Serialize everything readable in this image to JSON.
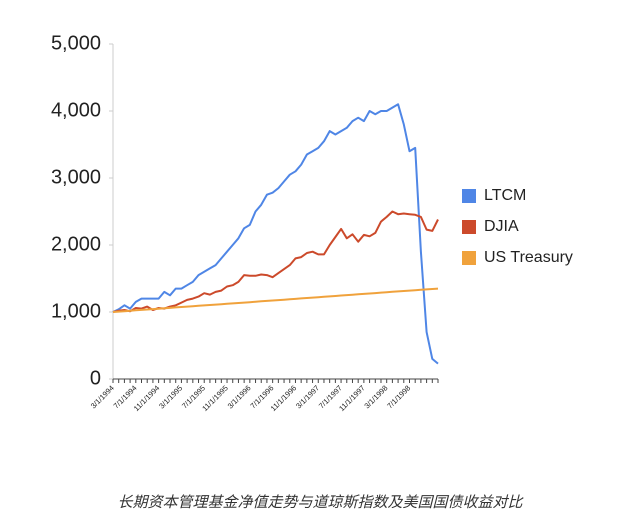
{
  "chart_data": {
    "type": "line",
    "caption": "长期资本管理基金净值走势与道琼斯指数及美国国债收益对比",
    "categories": [
      "3/1/1994",
      null,
      null,
      null,
      "7/1/1994",
      null,
      null,
      null,
      "11/1/1994",
      null,
      null,
      null,
      "3/1/1995",
      null,
      null,
      null,
      "7/1/1995",
      null,
      null,
      null,
      "11/1/1995",
      null,
      null,
      null,
      "3/1/1996",
      null,
      null,
      null,
      "7/1/1996",
      null,
      null,
      null,
      "11/1/1996",
      null,
      null,
      null,
      "3/1/1997",
      null,
      null,
      null,
      "7/1/1997",
      null,
      null,
      null,
      "11/1/1997",
      null,
      null,
      null,
      "3/1/1998",
      null,
      null,
      null,
      "7/1/1998",
      null,
      null,
      null,
      null,
      null
    ],
    "series": [
      {
        "name": "LTCM",
        "color": "#4f86e6",
        "values": [
          1000,
          1040,
          1100,
          1050,
          1150,
          1200,
          1200,
          1200,
          1200,
          1300,
          1250,
          1350,
          1350,
          1400,
          1450,
          1550,
          1600,
          1650,
          1700,
          1800,
          1900,
          2000,
          2100,
          2250,
          2300,
          2500,
          2600,
          2750,
          2780,
          2850,
          2950,
          3050,
          3100,
          3200,
          3350,
          3400,
          3450,
          3550,
          3700,
          3650,
          3700,
          3750,
          3850,
          3900,
          3850,
          4000,
          3950,
          4000,
          4000,
          4050,
          4100,
          3800,
          3400,
          3450,
          1900,
          700,
          300,
          230
        ]
      },
      {
        "name": "DJIA",
        "color": "#cc4a2b",
        "values": [
          1000,
          1020,
          1030,
          1010,
          1060,
          1050,
          1080,
          1030,
          1060,
          1050,
          1080,
          1100,
          1140,
          1180,
          1200,
          1230,
          1280,
          1260,
          1300,
          1320,
          1380,
          1400,
          1450,
          1550,
          1540,
          1540,
          1560,
          1550,
          1520,
          1580,
          1640,
          1700,
          1800,
          1820,
          1880,
          1900,
          1860,
          1860,
          2000,
          2120,
          2240,
          2100,
          2160,
          2050,
          2150,
          2130,
          2180,
          2350,
          2420,
          2500,
          2460,
          2470,
          2460,
          2450,
          2420,
          2230,
          2210,
          2380
        ]
      },
      {
        "name": "US Treasury",
        "color": "#f0a23c",
        "values": [
          1000,
          1006,
          1012,
          1018,
          1025,
          1031,
          1037,
          1043,
          1049,
          1055,
          1061,
          1068,
          1074,
          1080,
          1086,
          1092,
          1098,
          1104,
          1111,
          1117,
          1123,
          1129,
          1135,
          1141,
          1147,
          1154,
          1160,
          1166,
          1172,
          1178,
          1184,
          1190,
          1196,
          1203,
          1209,
          1215,
          1221,
          1227,
          1233,
          1239,
          1246,
          1252,
          1258,
          1264,
          1270,
          1276,
          1282,
          1289,
          1295,
          1301,
          1307,
          1313,
          1319,
          1325,
          1332,
          1338,
          1344,
          1350
        ]
      }
    ],
    "ylim": [
      0,
      5000
    ],
    "yticks": [
      0,
      {
        "value": 1000,
        "label": "1,000"
      },
      {
        "value": 2000,
        "label": "2,000"
      },
      {
        "value": 3000,
        "label": "3,000"
      },
      {
        "value": 4000,
        "label": "4,000"
      },
      {
        "value": 5000,
        "label": "5,000"
      }
    ],
    "legend": "right"
  }
}
